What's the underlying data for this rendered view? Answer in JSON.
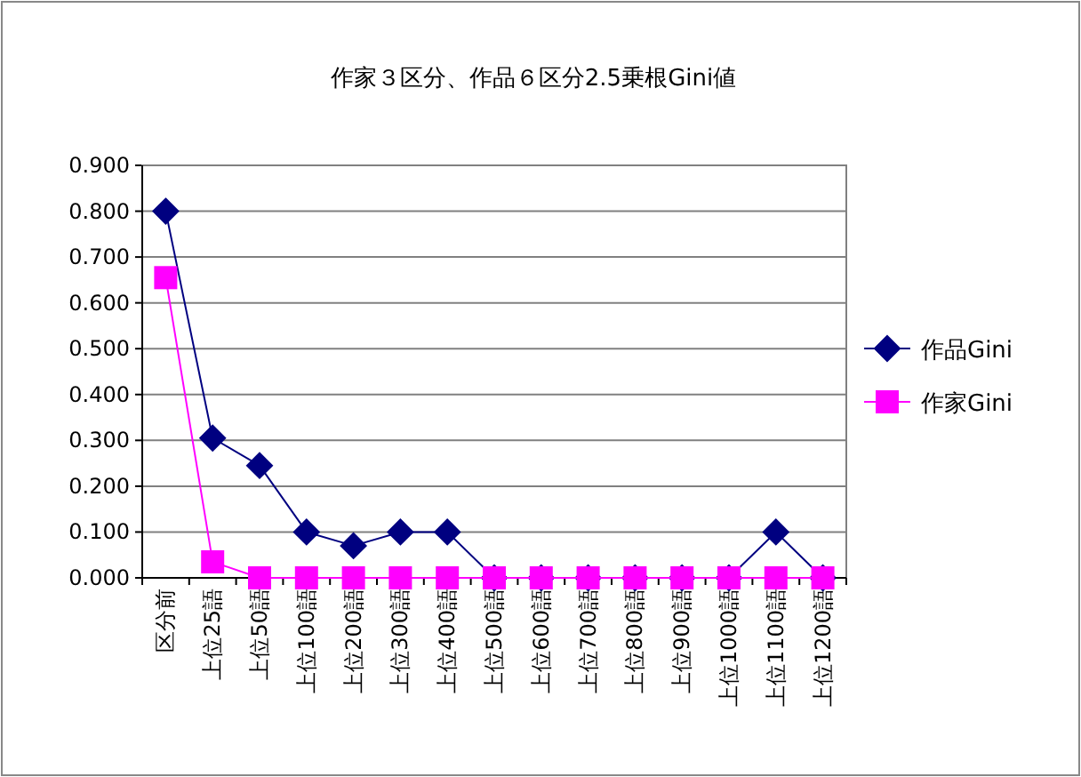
{
  "chart_data": {
    "type": "line",
    "title": "作家３区分、作品６区分2.5乗根Gini値",
    "categories": [
      "区分前",
      "上位25語",
      "上位50語",
      "上位100語",
      "上位200語",
      "上位300語",
      "上位400語",
      "上位500語",
      "上位600語",
      "上位700語",
      "上位800語",
      "上位900語",
      "上位1000語",
      "上位1100語",
      "上位1200語"
    ],
    "series": [
      {
        "name": "作品Gini",
        "color": "#000080",
        "marker": "diamond",
        "values": [
          0.8,
          0.305,
          0.245,
          0.1,
          0.07,
          0.1,
          0.1,
          0,
          0,
          0,
          0,
          0,
          0,
          0.1,
          0
        ]
      },
      {
        "name": "作家Gini",
        "color": "#ff00ff",
        "marker": "square",
        "values": [
          0.655,
          0.035,
          0,
          0,
          0,
          0,
          0,
          0,
          0,
          0,
          0,
          0,
          0,
          0,
          0
        ]
      }
    ],
    "ylim": [
      0,
      0.9
    ],
    "yticks": [
      {
        "value": 0,
        "label": "0.000"
      },
      {
        "value": 0.1,
        "label": "0.100"
      },
      {
        "value": 0.2,
        "label": "0.200"
      },
      {
        "value": 0.3,
        "label": "0.300"
      },
      {
        "value": 0.4,
        "label": "0.400"
      },
      {
        "value": 0.5,
        "label": "0.500"
      },
      {
        "value": 0.6,
        "label": "0.600"
      },
      {
        "value": 0.7,
        "label": "0.700"
      },
      {
        "value": 0.8,
        "label": "0.800"
      },
      {
        "value": 0.9,
        "label": "0.900"
      }
    ],
    "grid": "y",
    "legend": "right",
    "line_style": "solid"
  }
}
